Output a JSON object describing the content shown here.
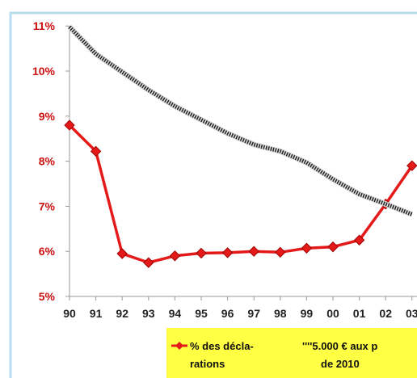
{
  "chart_data": {
    "type": "line",
    "title": "",
    "xlabel": "",
    "ylabel": "",
    "x": [
      "90",
      "91",
      "92",
      "93",
      "94",
      "95",
      "96",
      "97",
      "98",
      "99",
      "00",
      "01",
      "02",
      "03"
    ],
    "y_ticks": [
      "5%",
      "6%",
      "7%",
      "8%",
      "9%",
      "10%",
      "11%"
    ],
    "ylim": [
      5,
      11
    ],
    "grid": false,
    "legend_position": "bottom",
    "series": [
      {
        "name_lines": [
          "% des décla-",
          "rations"
        ],
        "style": "solid-red-diamonds",
        "color": "#e41a1a",
        "values": [
          8.8,
          8.22,
          5.95,
          5.75,
          5.9,
          5.96,
          5.97,
          6.0,
          5.98,
          6.07,
          6.1,
          6.25,
          7.05,
          7.9
        ]
      },
      {
        "name_lines": [
          "''''5.000 € aux p",
          "de 2010"
        ],
        "style": "dotted-black",
        "color": "#222222",
        "values": [
          10.98,
          10.38,
          9.98,
          9.58,
          9.22,
          8.92,
          8.62,
          8.37,
          8.22,
          7.97,
          7.6,
          7.27,
          7.05,
          6.82
        ]
      }
    ],
    "colors": {
      "frame_border": "#b7dcef",
      "legend_bg": "#ffff44",
      "axis": "#999999",
      "ytick_text": "#cc1111"
    }
  }
}
